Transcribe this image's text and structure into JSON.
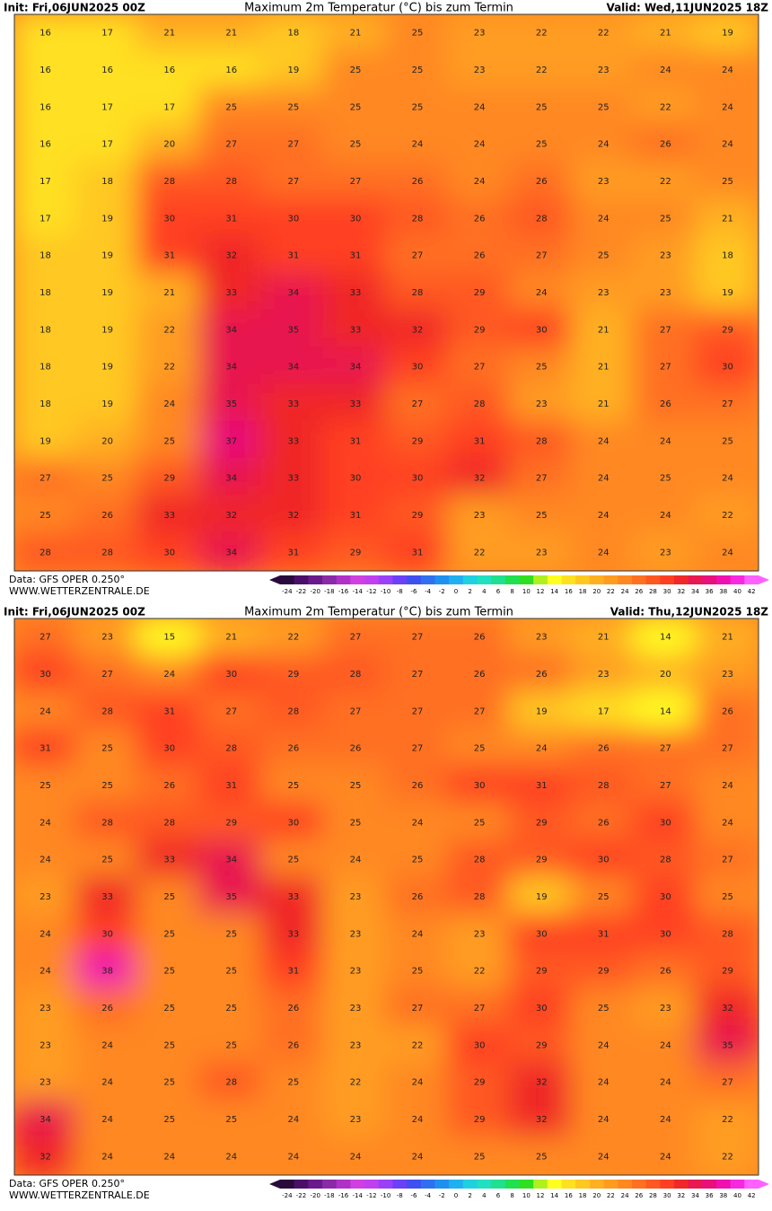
{
  "maps": [
    {
      "header": {
        "init": "Init: Fri,06JUN2025 00Z",
        "title": "Maximum 2m Temperatur (°C) bis zum Termin",
        "valid": "Valid: Wed,11JUN2025 18Z"
      },
      "grid": [
        [
          16,
          17,
          21,
          21,
          18,
          21,
          25,
          23,
          22,
          22,
          21,
          19
        ],
        [
          16,
          16,
          16,
          16,
          19,
          25,
          25,
          23,
          22,
          23,
          24,
          24
        ],
        [
          16,
          17,
          17,
          25,
          25,
          25,
          25,
          24,
          25,
          25,
          22,
          24
        ],
        [
          16,
          17,
          20,
          27,
          27,
          25,
          24,
          24,
          25,
          24,
          26,
          24
        ],
        [
          17,
          18,
          28,
          28,
          27,
          27,
          26,
          24,
          26,
          23,
          22,
          25
        ],
        [
          17,
          19,
          30,
          31,
          30,
          30,
          28,
          26,
          28,
          24,
          25,
          21
        ],
        [
          18,
          19,
          31,
          32,
          31,
          31,
          27,
          26,
          27,
          25,
          23,
          18
        ],
        [
          18,
          19,
          21,
          33,
          34,
          33,
          28,
          29,
          24,
          23,
          23,
          19
        ],
        [
          18,
          19,
          22,
          34,
          35,
          33,
          32,
          29,
          30,
          21,
          27,
          29
        ],
        [
          18,
          19,
          22,
          34,
          34,
          34,
          30,
          27,
          25,
          21,
          27,
          30
        ],
        [
          18,
          19,
          24,
          35,
          33,
          33,
          27,
          28,
          23,
          21,
          26,
          27
        ],
        [
          19,
          20,
          25,
          37,
          33,
          31,
          29,
          31,
          28,
          24,
          24,
          25
        ],
        [
          27,
          25,
          29,
          34,
          33,
          30,
          30,
          32,
          27,
          24,
          25,
          24
        ],
        [
          25,
          26,
          33,
          32,
          32,
          31,
          29,
          23,
          25,
          24,
          24,
          22
        ],
        [
          28,
          28,
          30,
          34,
          31,
          29,
          31,
          22,
          23,
          24,
          23,
          24
        ]
      ],
      "footer": {
        "data": "Data: GFS OPER 0.250°",
        "site": "WWW.WETTERZENTRALE.DE"
      }
    },
    {
      "header": {
        "init": "Init: Fri,06JUN2025 00Z",
        "title": "Maximum 2m Temperatur (°C) bis zum Termin",
        "valid": "Valid: Thu,12JUN2025 18Z"
      },
      "grid": [
        [
          27,
          23,
          15,
          21,
          22,
          27,
          27,
          26,
          23,
          21,
          14,
          21
        ],
        [
          30,
          27,
          24,
          30,
          29,
          28,
          27,
          26,
          26,
          23,
          20,
          23
        ],
        [
          24,
          28,
          31,
          27,
          28,
          27,
          27,
          27,
          19,
          17,
          14,
          26
        ],
        [
          31,
          25,
          30,
          28,
          26,
          26,
          27,
          25,
          24,
          26,
          27,
          27
        ],
        [
          25,
          25,
          26,
          31,
          25,
          25,
          26,
          30,
          31,
          28,
          27,
          24
        ],
        [
          24,
          28,
          28,
          29,
          30,
          25,
          24,
          25,
          29,
          26,
          30,
          24
        ],
        [
          24,
          25,
          33,
          34,
          25,
          24,
          25,
          28,
          29,
          30,
          28,
          27
        ],
        [
          23,
          33,
          25,
          35,
          33,
          23,
          26,
          28,
          19,
          25,
          30,
          25
        ],
        [
          24,
          30,
          25,
          25,
          33,
          23,
          24,
          23,
          30,
          31,
          30,
          28
        ],
        [
          24,
          38,
          25,
          25,
          31,
          23,
          25,
          22,
          29,
          29,
          26,
          29
        ],
        [
          23,
          26,
          25,
          25,
          26,
          23,
          27,
          27,
          30,
          25,
          23,
          32
        ],
        [
          23,
          24,
          25,
          25,
          26,
          23,
          22,
          30,
          29,
          24,
          24,
          35
        ],
        [
          23,
          24,
          25,
          28,
          25,
          22,
          24,
          29,
          32,
          24,
          24,
          27
        ],
        [
          34,
          24,
          25,
          25,
          24,
          23,
          24,
          29,
          32,
          24,
          24,
          22
        ],
        [
          32,
          24,
          24,
          24,
          24,
          24,
          24,
          25,
          25,
          24,
          24,
          22
        ]
      ],
      "footer": {
        "data": "Data: GFS OPER 0.250°",
        "site": "WWW.WETTERZENTRALE.DE"
      }
    }
  ],
  "legend": {
    "labels": [
      -24,
      -22,
      -20,
      -18,
      -16,
      -14,
      -12,
      -10,
      -8,
      -6,
      -4,
      -2,
      0,
      2,
      4,
      6,
      8,
      10,
      12,
      14,
      16,
      18,
      20,
      22,
      24,
      26,
      28,
      30,
      32,
      34,
      36,
      38,
      40,
      42
    ],
    "colors": [
      "#2a0a3c",
      "#4b0f6a",
      "#6a1a8a",
      "#8a2aa8",
      "#b030c8",
      "#d040e0",
      "#c040f0",
      "#9a40f8",
      "#6a40f8",
      "#4050f0",
      "#3070f0",
      "#2090f0",
      "#20b0f0",
      "#20d0e0",
      "#20e0c0",
      "#20e090",
      "#20e050",
      "#30e020",
      "#b0f020",
      "#ffff20",
      "#ffe020",
      "#ffc820",
      "#ffb020",
      "#ff9c20",
      "#ff8820",
      "#ff7020",
      "#ff5820",
      "#ff4020",
      "#f02828",
      "#e81850",
      "#e8107a",
      "#f010b0",
      "#f828e0",
      "#ff60ff"
    ]
  }
}
